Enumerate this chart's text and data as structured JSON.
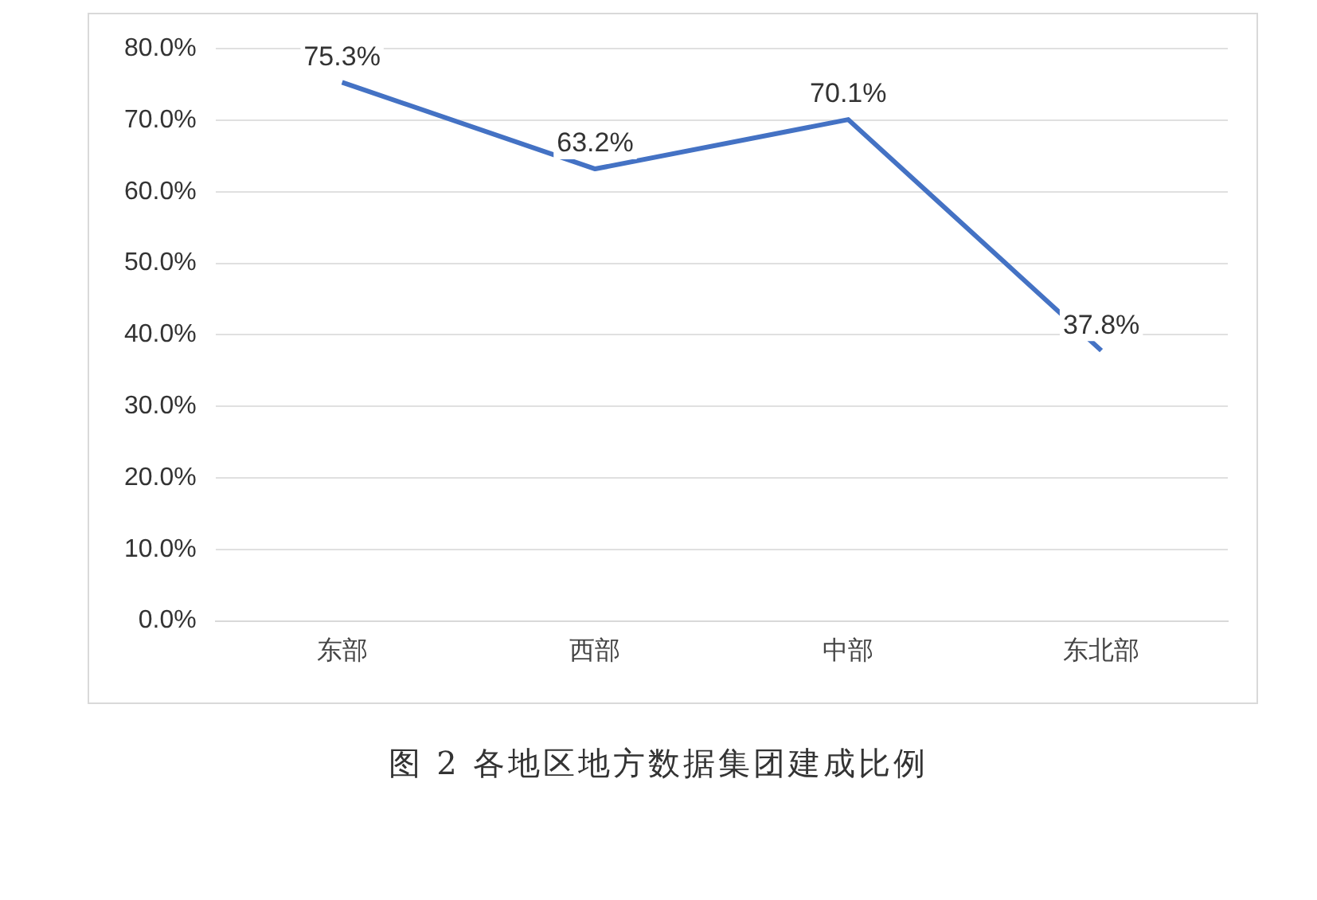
{
  "chart_data": {
    "type": "line",
    "title": "图 2 各地区地方数据集团建成比例",
    "categories": [
      "东部",
      "西部",
      "中部",
      "东北部"
    ],
    "series": [
      {
        "color": "#4472c4",
        "values": [
          75.3,
          63.2,
          70.1,
          37.8
        ],
        "value_labels": [
          "75.3%",
          "63.2%",
          "70.1%",
          "37.8%"
        ]
      }
    ],
    "ylim": [
      0,
      80
    ],
    "yticks": [
      {
        "value": 0,
        "label": "0.0%"
      },
      {
        "value": 10,
        "label": "10.0%"
      },
      {
        "value": 20,
        "label": "20.0%"
      },
      {
        "value": 30,
        "label": "30.0%"
      },
      {
        "value": 40,
        "label": "40.0%"
      },
      {
        "value": 50,
        "label": "50.0%"
      },
      {
        "value": 60,
        "label": "60.0%"
      },
      {
        "value": 70,
        "label": "70.0%"
      },
      {
        "value": 80,
        "label": "80.0%"
      }
    ],
    "grid": "y",
    "legend": false,
    "marker": "none",
    "line_style": "solid"
  }
}
